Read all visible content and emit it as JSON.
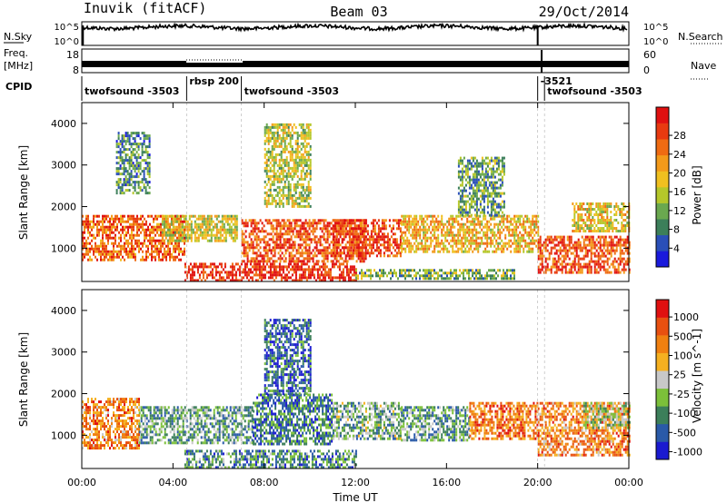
{
  "header": {
    "station": "Inuvik (fitACF)",
    "beam": "Beam 03",
    "date": "29/Oct/2014"
  },
  "noise_panel": {
    "left_label": "N.Sky",
    "right_label": "N.Search",
    "left_ticks": [
      "10^5",
      "10^0"
    ],
    "right_ticks": [
      "10^5",
      "10^0"
    ]
  },
  "freq_panel": {
    "left_label_1": "Freq.",
    "left_label_2": "[MHz]",
    "right_label": "Nave",
    "left_ticks": [
      "18",
      "8"
    ],
    "right_ticks": [
      "60",
      "0"
    ]
  },
  "cpid": {
    "label": "CPID",
    "segments": [
      {
        "text": "twofsound -3503",
        "start_h": 0,
        "end_h": 4.6
      },
      {
        "text": "rbsp 200",
        "start_h": 4.6,
        "end_h": 7.0
      },
      {
        "text": "twofsound -3503",
        "start_h": 7.0,
        "end_h": 20.0
      },
      {
        "text": "-3521",
        "start_h": 20.0,
        "end_h": 20.3
      },
      {
        "text": "twofsound -3503",
        "start_h": 20.3,
        "end_h": 24.0
      }
    ]
  },
  "chart_data": [
    {
      "type": "heatmap",
      "panel": "power",
      "ylabel": "Slant Range [km]",
      "yticks": [
        "1000",
        "2000",
        "3000",
        "4000"
      ],
      "ylim": [
        200,
        4500
      ],
      "xlim": [
        0,
        24
      ],
      "colorbar": {
        "label": "Power [dB]",
        "ticks": [
          "4",
          "8",
          "12",
          "16",
          "20",
          "24",
          "28"
        ],
        "colors": [
          "#1a1adc",
          "#2a4fb8",
          "#3c7f5a",
          "#6aa84f",
          "#b5c72a",
          "#f0c020",
          "#f39a1a",
          "#ef6b12",
          "#e83a10",
          "#e01010"
        ]
      },
      "bands": [
        {
          "t0": 0.0,
          "t1": 4.5,
          "r0": 700,
          "r1": 1800,
          "level": 0.8
        },
        {
          "t0": 3.5,
          "t1": 6.8,
          "r0": 1200,
          "r1": 1800,
          "level": 0.5
        },
        {
          "t0": 4.5,
          "t1": 12.0,
          "r0": 250,
          "r1": 650,
          "level": 0.95
        },
        {
          "t0": 7.0,
          "t1": 12.5,
          "r0": 700,
          "r1": 1700,
          "level": 0.85
        },
        {
          "t0": 11.0,
          "t1": 14.0,
          "r0": 800,
          "r1": 1700,
          "level": 0.9
        },
        {
          "t0": 12.0,
          "t1": 19.0,
          "r0": 250,
          "r1": 500,
          "level": 0.35
        },
        {
          "t0": 14.0,
          "t1": 20.0,
          "r0": 900,
          "r1": 1800,
          "level": 0.6
        },
        {
          "t0": 20.0,
          "t1": 24.0,
          "r0": 400,
          "r1": 1300,
          "level": 0.85
        },
        {
          "t0": 21.5,
          "t1": 24.0,
          "r0": 1400,
          "r1": 2100,
          "level": 0.55
        },
        {
          "t0": 1.5,
          "t1": 3.0,
          "r0": 2300,
          "r1": 3800,
          "level": 0.25
        },
        {
          "t0": 8.0,
          "t1": 10.0,
          "r0": 2000,
          "r1": 4000,
          "level": 0.45
        },
        {
          "t0": 16.5,
          "t1": 18.5,
          "r0": 1800,
          "r1": 3200,
          "level": 0.3
        }
      ]
    },
    {
      "type": "heatmap",
      "panel": "velocity",
      "ylabel": "Slant Range [km]",
      "yticks": [
        "1000",
        "2000",
        "3000",
        "4000"
      ],
      "ylim": [
        200,
        4500
      ],
      "xlim": [
        0,
        24
      ],
      "xlabel": "Time UT",
      "xticks": [
        "00:00",
        "04:00",
        "08:00",
        "12:00",
        "16:00",
        "20:00",
        "00:00"
      ],
      "colorbar": {
        "label": "Velocity [m s^-1]",
        "ticks": [
          "1000",
          "500",
          "100",
          "25",
          "-25",
          "-100",
          "-500",
          "-1000"
        ],
        "colors": [
          "#1a1ad0",
          "#2a5aa8",
          "#3c7f5a",
          "#7cc03a",
          "#c8c8c8",
          "#f5b020",
          "#f08010",
          "#e85010",
          "#e01010"
        ]
      },
      "bands": [
        {
          "t0": 0.0,
          "t1": 2.5,
          "r0": 700,
          "r1": 1900,
          "level": 0.75
        },
        {
          "t0": 2.5,
          "t1": 7.5,
          "r0": 800,
          "r1": 1700,
          "level": 0.3
        },
        {
          "t0": 4.5,
          "t1": 12.0,
          "r0": 250,
          "r1": 650,
          "level": 0.25
        },
        {
          "t0": 7.5,
          "t1": 11.0,
          "r0": 800,
          "r1": 2000,
          "level": 0.2
        },
        {
          "t0": 11.0,
          "t1": 14.0,
          "r0": 900,
          "r1": 1800,
          "level": 0.35
        },
        {
          "t0": 14.0,
          "t1": 17.0,
          "r0": 900,
          "r1": 1700,
          "level": 0.3
        },
        {
          "t0": 17.0,
          "t1": 20.0,
          "r0": 900,
          "r1": 1800,
          "level": 0.8
        },
        {
          "t0": 20.0,
          "t1": 24.0,
          "r0": 500,
          "r1": 1800,
          "level": 0.75
        },
        {
          "t0": 22.0,
          "t1": 24.0,
          "r0": 1200,
          "r1": 1800,
          "level": 0.45
        },
        {
          "t0": 8.0,
          "t1": 10.0,
          "r0": 2000,
          "r1": 3800,
          "level": 0.15
        }
      ]
    }
  ]
}
